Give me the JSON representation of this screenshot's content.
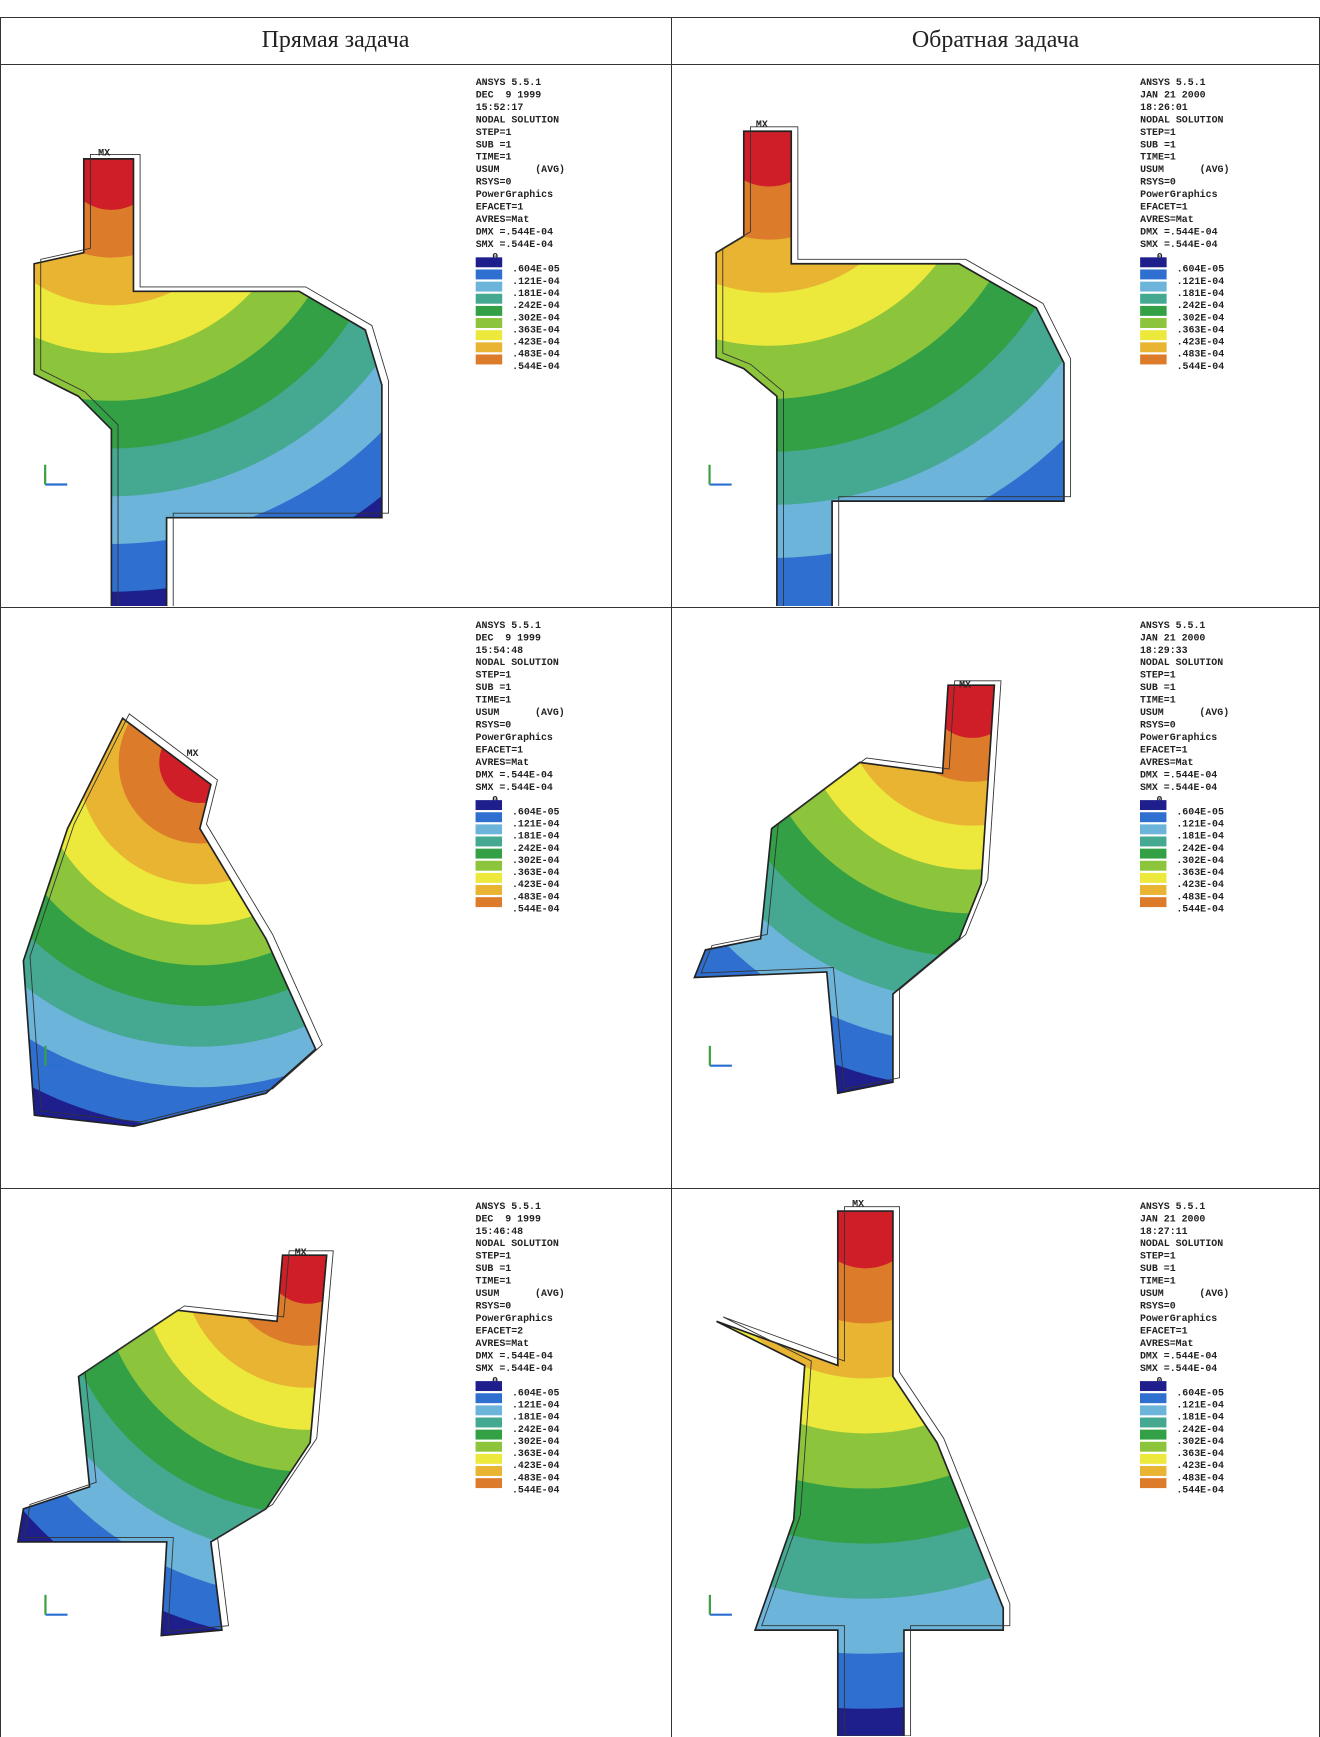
{
  "table": {
    "columns": [
      "Прямая задача",
      "Обратная задача"
    ],
    "rows": [
      [
        {
          "marker": "MX",
          "info": [
            "ANSYS 5.5.1",
            "DEC  9 1999",
            "15:52:17",
            "NODAL SOLUTION",
            "STEP=1",
            "SUB =1",
            "TIME=1",
            "USUM      (AVG)",
            "RSYS=0",
            "PowerGraphics",
            "EFACET=1",
            "AVRES=Mat",
            "DMX =.544E-04",
            "SMX =.544E-04"
          ],
          "legend": [
            "0",
            ".604E-05",
            ".121E-04",
            ".181E-04",
            ".242E-04",
            ".302E-04",
            ".363E-04",
            ".423E-04",
            ".483E-04",
            ".544E-04"
          ]
        },
        {
          "marker": "MX",
          "info": [
            "ANSYS 5.5.1",
            "JAN 21 2000",
            "18:26:01",
            "NODAL SOLUTION",
            "STEP=1",
            "SUB =1",
            "TIME=1",
            "USUM      (AVG)",
            "RSYS=0",
            "PowerGraphics",
            "EFACET=1",
            "AVRES=Mat",
            "DMX =.544E-04",
            "SMX =.544E-04"
          ],
          "legend": [
            "0",
            ".604E-05",
            ".121E-04",
            ".181E-04",
            ".242E-04",
            ".302E-04",
            ".363E-04",
            ".423E-04",
            ".483E-04",
            ".544E-04"
          ]
        }
      ],
      [
        {
          "marker": "MX",
          "info": [
            "ANSYS 5.5.1",
            "DEC  9 1999",
            "15:54:48",
            "NODAL SOLUTION",
            "STEP=1",
            "SUB =1",
            "TIME=1",
            "USUM      (AVG)",
            "RSYS=0",
            "PowerGraphics",
            "EFACET=1",
            "AVRES=Mat",
            "DMX =.544E-04",
            "SMX =.544E-04"
          ],
          "legend": [
            "0",
            ".604E-05",
            ".121E-04",
            ".181E-04",
            ".242E-04",
            ".302E-04",
            ".363E-04",
            ".423E-04",
            ".483E-04",
            ".544E-04"
          ]
        },
        {
          "marker": "MX",
          "info": [
            "ANSYS 5.5.1",
            "JAN 21 2000",
            "18:29:33",
            "NODAL SOLUTION",
            "STEP=1",
            "SUB =1",
            "TIME=1",
            "USUM      (AVG)",
            "RSYS=0",
            "PowerGraphics",
            "EFACET=1",
            "AVRES=Mat",
            "DMX =.544E-04",
            "SMX =.544E-04"
          ],
          "legend": [
            "0",
            ".604E-05",
            ".121E-04",
            ".181E-04",
            ".242E-04",
            ".302E-04",
            ".363E-04",
            ".423E-04",
            ".483E-04",
            ".544E-04"
          ]
        }
      ],
      [
        {
          "marker": "MX",
          "info": [
            "ANSYS 5.5.1",
            "DEC  9 1999",
            "15:46:48",
            "NODAL SOLUTION",
            "STEP=1",
            "SUB =1",
            "TIME=1",
            "USUM      (AVG)",
            "RSYS=0",
            "PowerGraphics",
            "EFACET=2",
            "AVRES=Mat",
            "DMX =.544E-04",
            "SMX =.544E-04"
          ],
          "legend": [
            "0",
            ".604E-05",
            ".121E-04",
            ".181E-04",
            ".242E-04",
            ".302E-04",
            ".363E-04",
            ".423E-04",
            ".483E-04",
            ".544E-04"
          ]
        },
        {
          "marker": "MX",
          "info": [
            "ANSYS 5.5.1",
            "JAN 21 2000",
            "18:27:11",
            "NODAL SOLUTION",
            "STEP=1",
            "SUB =1",
            "TIME=1",
            "USUM      (AVG)",
            "RSYS=0",
            "PowerGraphics",
            "EFACET=1",
            "AVRES=Mat",
            "DMX =.544E-04",
            "SMX =.544E-04"
          ],
          "legend": [
            "0",
            ".604E-05",
            ".121E-04",
            ".181E-04",
            ".242E-04",
            ".302E-04",
            ".363E-04",
            ".423E-04",
            ".483E-04",
            ".544E-04"
          ]
        }
      ]
    ]
  }
}
